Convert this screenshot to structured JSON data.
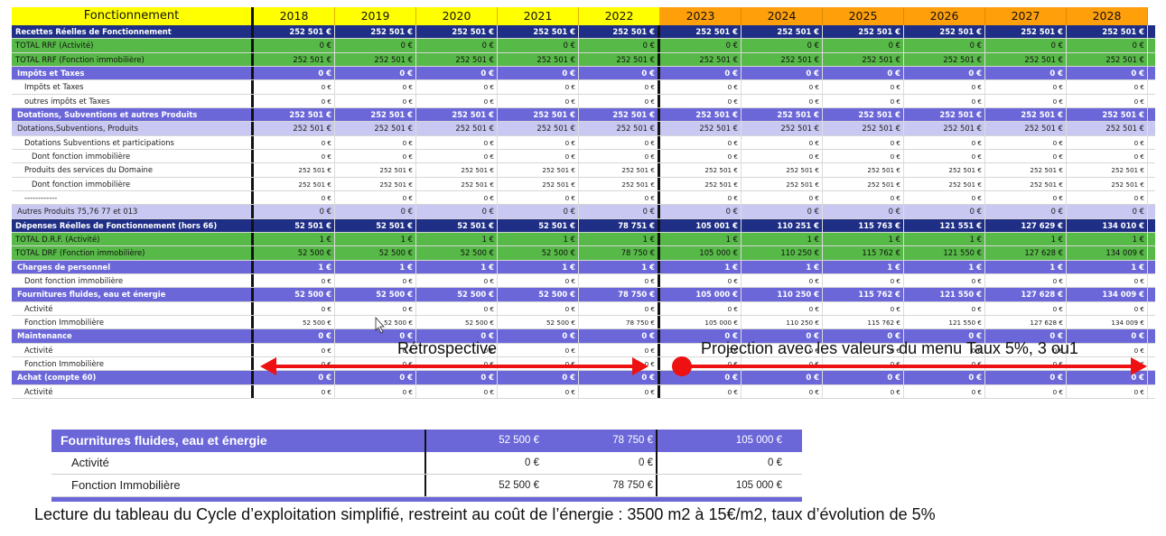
{
  "header": {
    "title": "Fonctionnement",
    "years": [
      "2018",
      "2019",
      "2020",
      "2021",
      "2022",
      "2023",
      "2024",
      "2025",
      "2026",
      "2027",
      "2028"
    ]
  },
  "rows": [
    {
      "label": "Recettes Réelles de Fonctionnement",
      "style": "navy",
      "indent": 0,
      "values": [
        "252 501 €",
        "252 501 €",
        "252 501 €",
        "252 501 €",
        "252 501 €",
        "252 501 €",
        "252 501 €",
        "252 501 €",
        "252 501 €",
        "252 501 €",
        "252 501 €"
      ]
    },
    {
      "label": "TOTAL RRF (Activité)",
      "style": "green",
      "indent": 0,
      "values": [
        "0 €",
        "0 €",
        "0 €",
        "0 €",
        "0 €",
        "0 €",
        "0 €",
        "0 €",
        "0 €",
        "0 €",
        "0 €"
      ]
    },
    {
      "label": "TOTAL RRF (Fonction immobilière)",
      "style": "green",
      "indent": 0,
      "values": [
        "252 501 €",
        "252 501 €",
        "252 501 €",
        "252 501 €",
        "252 501 €",
        "252 501 €",
        "252 501 €",
        "252 501 €",
        "252 501 €",
        "252 501 €",
        "252 501 €"
      ]
    },
    {
      "label": "Impôts et Taxes",
      "style": "blue",
      "indent": 1,
      "values": [
        "0 €",
        "0 €",
        "0 €",
        "0 €",
        "0 €",
        "0 €",
        "0 €",
        "0 €",
        "0 €",
        "0 €",
        "0 €"
      ]
    },
    {
      "label": "Impôts et Taxes",
      "style": "white",
      "indent": 2,
      "values": [
        "0 €",
        "0 €",
        "0 €",
        "0 €",
        "0 €",
        "0 €",
        "0 €",
        "0 €",
        "0 €",
        "0 €",
        "0 €"
      ]
    },
    {
      "label": "outres impôts et Taxes",
      "style": "white",
      "indent": 2,
      "values": [
        "0 €",
        "0 €",
        "0 €",
        "0 €",
        "0 €",
        "0 €",
        "0 €",
        "0 €",
        "0 €",
        "0 €",
        "0 €"
      ]
    },
    {
      "label": "Dotations, Subventions et autres Produits",
      "style": "blue",
      "indent": 1,
      "values": [
        "252 501 €",
        "252 501 €",
        "252 501 €",
        "252 501 €",
        "252 501 €",
        "252 501 €",
        "252 501 €",
        "252 501 €",
        "252 501 €",
        "252 501 €",
        "252 501 €"
      ]
    },
    {
      "label": "Dotations,Subventions, Produits",
      "style": "lav",
      "indent": 1,
      "values": [
        "252 501 €",
        "252 501 €",
        "252 501 €",
        "252 501 €",
        "252 501 €",
        "252 501 €",
        "252 501 €",
        "252 501 €",
        "252 501 €",
        "252 501 €",
        "252 501 €"
      ]
    },
    {
      "label": "Dotations Subventions et participations",
      "style": "white",
      "indent": 2,
      "values": [
        "0 €",
        "0 €",
        "0 €",
        "0 €",
        "0 €",
        "0 €",
        "0 €",
        "0 €",
        "0 €",
        "0 €",
        "0 €"
      ]
    },
    {
      "label": "Dont fonction immobilière",
      "style": "white",
      "indent": 3,
      "values": [
        "0 €",
        "0 €",
        "0 €",
        "0 €",
        "0 €",
        "0 €",
        "0 €",
        "0 €",
        "0 €",
        "0 €",
        "0 €"
      ]
    },
    {
      "label": "Produits des services du Domaine",
      "style": "white",
      "indent": 2,
      "values": [
        "252 501 €",
        "252 501 €",
        "252 501 €",
        "252 501 €",
        "252 501 €",
        "252 501 €",
        "252 501 €",
        "252 501 €",
        "252 501 €",
        "252 501 €",
        "252 501 €"
      ]
    },
    {
      "label": "Dont fonction immobilière",
      "style": "white",
      "indent": 3,
      "values": [
        "252 501 €",
        "252 501 €",
        "252 501 €",
        "252 501 €",
        "252 501 €",
        "252 501 €",
        "252 501 €",
        "252 501 €",
        "252 501 €",
        "252 501 €",
        "252 501 €"
      ]
    },
    {
      "label": "------------",
      "style": "white",
      "indent": 2,
      "values": [
        "0 €",
        "0 €",
        "0 €",
        "0 €",
        "0 €",
        "0 €",
        "0 €",
        "0 €",
        "0 €",
        "0 €",
        "0 €"
      ]
    },
    {
      "label": "Autres Produits 75,76 77 et 013",
      "style": "lav",
      "indent": 1,
      "values": [
        "0 €",
        "0 €",
        "0 €",
        "0 €",
        "0 €",
        "0 €",
        "0 €",
        "0 €",
        "0 €",
        "0 €",
        "0 €"
      ]
    },
    {
      "label": "Dépenses Réelles de Fonctionnement (hors 66)",
      "style": "navy",
      "indent": 0,
      "values": [
        "52 501 €",
        "52 501 €",
        "52 501 €",
        "52 501 €",
        "78 751 €",
        "105 001 €",
        "110 251 €",
        "115 763 €",
        "121 551 €",
        "127 629 €",
        "134 010 €"
      ]
    },
    {
      "label": "TOTAL D.R.F. (Activité)",
      "style": "green",
      "indent": 0,
      "values": [
        "1 €",
        "1 €",
        "1 €",
        "1 €",
        "1 €",
        "1 €",
        "1 €",
        "1 €",
        "1 €",
        "1 €",
        "1 €"
      ]
    },
    {
      "label": "TOTAL DRF (Fonction immobilière)",
      "style": "green",
      "indent": 0,
      "values": [
        "52 500 €",
        "52 500 €",
        "52 500 €",
        "52 500 €",
        "78 750 €",
        "105 000 €",
        "110 250 €",
        "115 762 €",
        "121 550 €",
        "127 628 €",
        "134 009 €"
      ]
    },
    {
      "label": "Charges de personnel",
      "style": "blue",
      "indent": 1,
      "values": [
        "1 €",
        "1 €",
        "1 €",
        "1 €",
        "1 €",
        "1 €",
        "1 €",
        "1 €",
        "1 €",
        "1 €",
        "1 €"
      ]
    },
    {
      "label": "Dont fonction immobilière",
      "style": "white",
      "indent": 2,
      "values": [
        "0 €",
        "0 €",
        "0 €",
        "0 €",
        "0 €",
        "0 €",
        "0 €",
        "0 €",
        "0 €",
        "0 €",
        "0 €"
      ]
    },
    {
      "label": "Fournitures fluides, eau et énergie",
      "style": "blue",
      "indent": 1,
      "values": [
        "52 500 €",
        "52 500 €",
        "52 500 €",
        "52 500 €",
        "78 750 €",
        "105 000 €",
        "110 250 €",
        "115 762 €",
        "121 550 €",
        "127 628 €",
        "134 009 €"
      ]
    },
    {
      "label": "Activité",
      "style": "white",
      "indent": 2,
      "values": [
        "0 €",
        "0 €",
        "0 €",
        "0 €",
        "0 €",
        "0 €",
        "0 €",
        "0 €",
        "0 €",
        "0 €",
        "0 €"
      ]
    },
    {
      "label": "Fonction Immobilière",
      "style": "white",
      "indent": 2,
      "values": [
        "52 500 €",
        "52 500 €",
        "52 500 €",
        "52 500 €",
        "78 750 €",
        "105 000 €",
        "110 250 €",
        "115 762 €",
        "121 550 €",
        "127 628 €",
        "134 009 €"
      ]
    },
    {
      "label": "Maintenance",
      "style": "blue",
      "indent": 1,
      "values": [
        "0 €",
        "0 €",
        "0 €",
        "0 €",
        "0 €",
        "0 €",
        "0 €",
        "0 €",
        "0 €",
        "0 €",
        "0 €"
      ]
    },
    {
      "label": "Activité",
      "style": "white",
      "indent": 2,
      "values": [
        "0 €",
        "0 €",
        "0 €",
        "0 €",
        "0 €",
        "0 €",
        "0 €",
        "0 €",
        "0 €",
        "0 €",
        "0 €"
      ]
    },
    {
      "label": "Fonction Immobilière",
      "style": "white",
      "indent": 2,
      "values": [
        "0 €",
        "0 €",
        "0 €",
        "0 €",
        "0 €",
        "0 €",
        "0 €",
        "0 €",
        "0 €",
        "0 €",
        "0 €"
      ]
    },
    {
      "label": "Achat (compte 60)",
      "style": "blue",
      "indent": 1,
      "values": [
        "0 €",
        "0 €",
        "0 €",
        "0 €",
        "0 €",
        "0 €",
        "0 €",
        "0 €",
        "0 €",
        "0 €",
        "0 €"
      ]
    },
    {
      "label": "Activité",
      "style": "white",
      "indent": 2,
      "values": [
        "0 €",
        "0 €",
        "0 €",
        "0 €",
        "0 €",
        "0 €",
        "0 €",
        "0 €",
        "0 €",
        "0 €",
        "0 €"
      ]
    }
  ],
  "annotations": {
    "retro": "Rétrospective",
    "projection": "Projection avec les valeurs du menu Taux 5%, 3 ou1",
    "arrow_color": "#ee1111"
  },
  "zoom": {
    "rows": [
      {
        "label": "Fournitures fluides, eau et énergie",
        "values": [
          "52 500 €",
          "78 750 €",
          "105 000 €"
        ]
      },
      {
        "label": "Activité",
        "values": [
          "0 €",
          "0 €",
          "0 €"
        ]
      },
      {
        "label": "Fonction Immobilière",
        "values": [
          "52 500 €",
          "78 750 €",
          "105 000 €"
        ]
      }
    ]
  },
  "caption": "Lecture du tableau du Cycle d’exploitation simplifié, restreint au coût de l’énergie : 3500 m2 à 15€/m2, taux d’évolution de 5%",
  "colors": {
    "header_yellow": "#ffff00",
    "header_orange": "#ff9f0a",
    "navy": "#1f2f86",
    "green": "#57b947",
    "blue": "#6b67d9",
    "lavender": "#c9c8f3"
  }
}
